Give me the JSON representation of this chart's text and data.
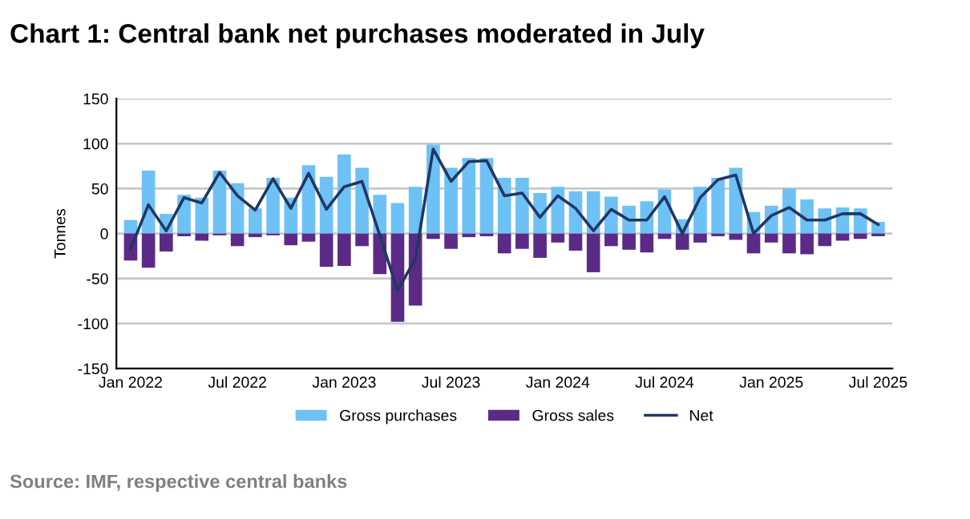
{
  "chart_data": {
    "type": "bar",
    "title": "Chart 1: Central bank net purchases moderated in July",
    "ylabel": "Tonnes",
    "categories": [
      "Jan 2022",
      null,
      null,
      null,
      null,
      null,
      "Jul 2022",
      null,
      null,
      null,
      null,
      null,
      "Jan 2023",
      null,
      null,
      null,
      null,
      null,
      "Jul 2023",
      null,
      null,
      null,
      null,
      null,
      "Jan 2024",
      null,
      null,
      null,
      null,
      null,
      "Jul 2024",
      null,
      null,
      null,
      null,
      null,
      "Jan 2025",
      null,
      null,
      null,
      null,
      null,
      "Jul 2025"
    ],
    "series": [
      {
        "name": "Gross purchases",
        "color": "#6ec1f5",
        "values": [
          15,
          70,
          22,
          43,
          40,
          70,
          56,
          28,
          62,
          40,
          76,
          63,
          88,
          73,
          43,
          34,
          52,
          99,
          73,
          84,
          84,
          62,
          62,
          45,
          52,
          47,
          47,
          41,
          31,
          36,
          49,
          16,
          52,
          62,
          73,
          24,
          31,
          50,
          38,
          28,
          29,
          28,
          13
        ]
      },
      {
        "name": "Gross sales",
        "color": "#5b2a86",
        "values": [
          -30,
          -38,
          -20,
          -3,
          -8,
          -2,
          -14,
          -4,
          -2,
          -13,
          -9,
          -37,
          -36,
          -14,
          -45,
          -98,
          -80,
          -6,
          -17,
          -4,
          -3,
          -22,
          -17,
          -27,
          -10,
          -19,
          -43,
          -14,
          -18,
          -21,
          -6,
          -18,
          -10,
          -3,
          -7,
          -22,
          -10,
          -22,
          -23,
          -14,
          -8,
          -6,
          -3
        ]
      },
      {
        "name": "Net",
        "type": "line",
        "color": "#1f3864",
        "values": [
          -17,
          32,
          3,
          40,
          34,
          68,
          42,
          26,
          61,
          28,
          67,
          27,
          52,
          58,
          -2,
          -63,
          -28,
          94,
          58,
          80,
          81,
          42,
          45,
          18,
          42,
          28,
          3,
          27,
          15,
          15,
          41,
          0,
          40,
          60,
          65,
          0,
          20,
          29,
          15,
          15,
          22,
          22,
          10
        ]
      }
    ],
    "ylim": [
      -150,
      150
    ],
    "yticks": [
      -150,
      -100,
      -50,
      0,
      50,
      100,
      150
    ],
    "grid": "y",
    "legend": "bottom",
    "stacked": true,
    "annotations": [
      "Source: IMF, respective central banks"
    ]
  }
}
